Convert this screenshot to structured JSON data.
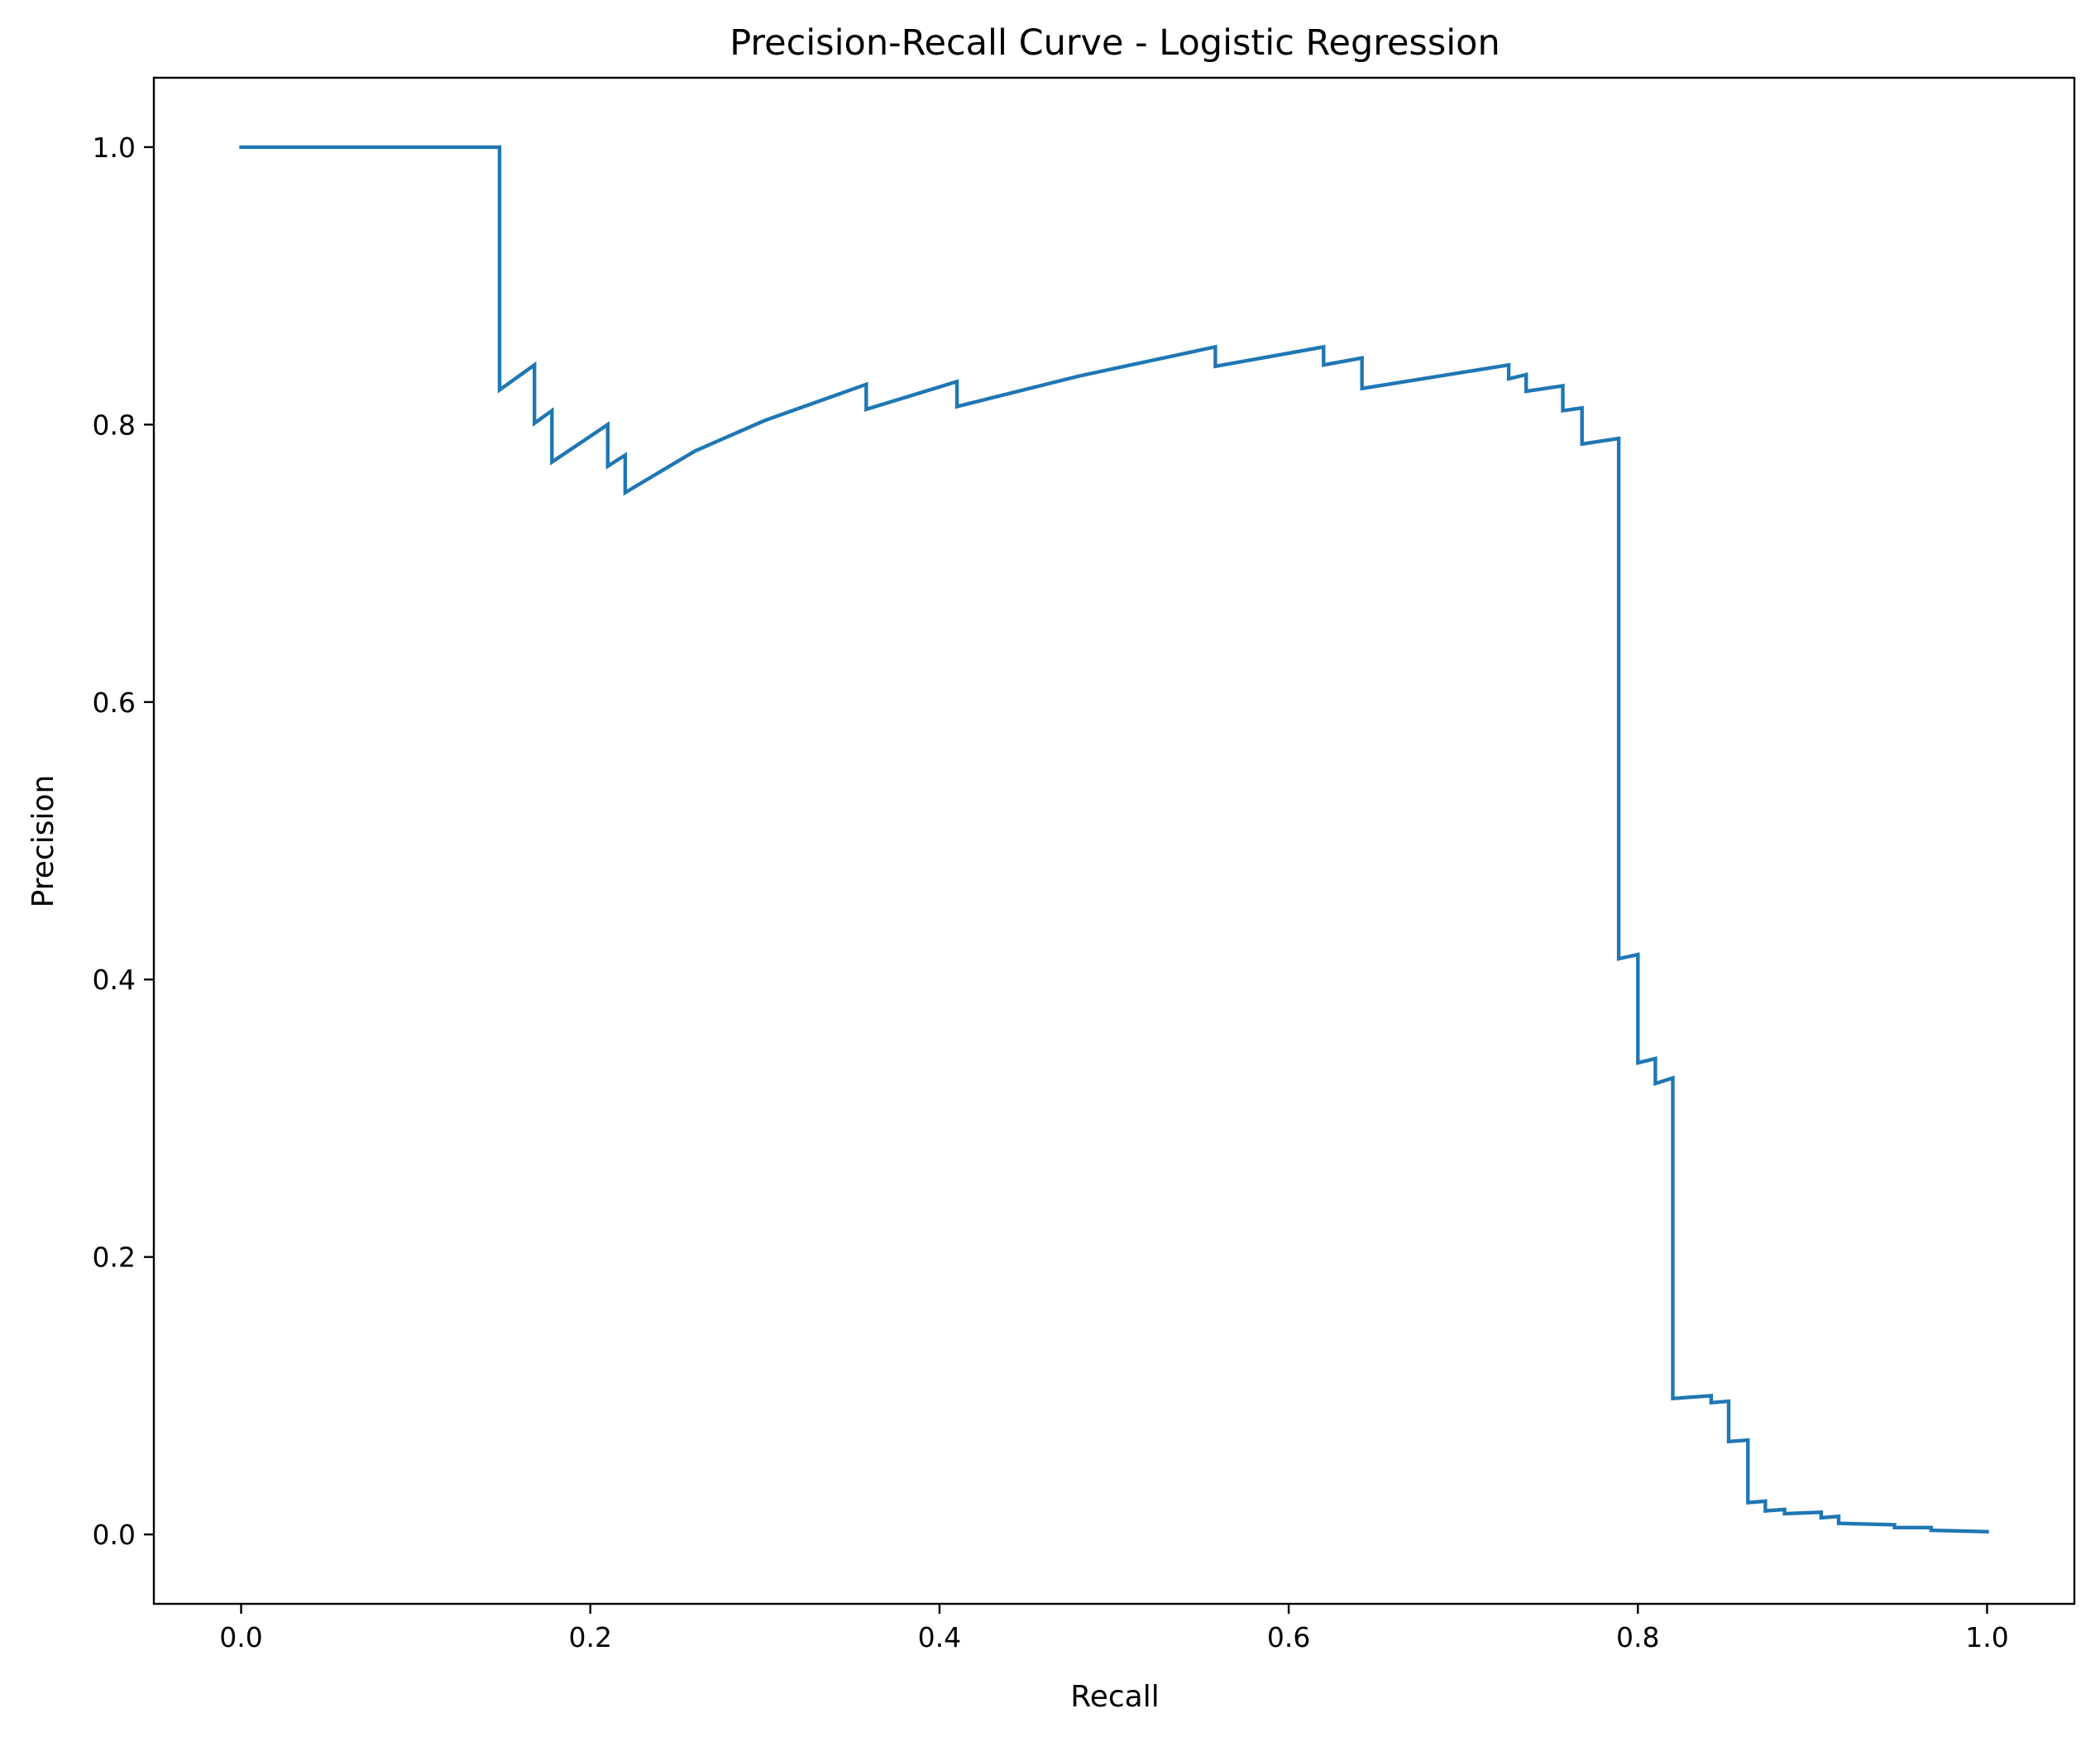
{
  "chart_data": {
    "type": "line",
    "title": "Precision-Recall Curve - Logistic Regression",
    "xlabel": "Recall",
    "ylabel": "Precision",
    "xlim": [
      -0.05,
      1.05
    ],
    "ylim": [
      -0.05,
      1.05
    ],
    "xticks": [
      0.0,
      0.2,
      0.4,
      0.6,
      0.8,
      1.0
    ],
    "yticks": [
      0.0,
      0.2,
      0.4,
      0.6,
      0.8,
      1.0
    ],
    "xtick_labels": [
      "0.0",
      "0.2",
      "0.4",
      "0.6",
      "0.8",
      "1.0"
    ],
    "ytick_labels": [
      "0.0",
      "0.2",
      "0.4",
      "0.6",
      "0.8",
      "1.0"
    ],
    "grid": false,
    "legend": "none",
    "line_color": "#1f77b4",
    "step": "post",
    "series": [
      {
        "x": [
          0.0,
          0.148,
          0.148,
          0.168,
          0.168,
          0.178,
          0.178,
          0.21,
          0.21,
          0.22,
          0.22,
          0.26,
          0.3,
          0.358,
          0.358,
          0.41,
          0.41,
          0.48,
          0.558,
          0.558,
          0.62,
          0.62,
          0.642,
          0.642,
          0.726,
          0.726,
          0.736,
          0.736,
          0.757,
          0.757,
          0.768,
          0.768,
          0.789,
          0.789,
          0.8,
          0.8,
          0.81,
          0.81,
          0.82,
          0.82,
          0.842,
          0.842,
          0.852,
          0.852,
          0.863,
          0.863,
          0.873,
          0.873,
          0.884,
          0.884,
          0.905,
          0.905,
          0.915,
          0.915,
          0.947,
          0.947,
          0.968,
          0.968,
          1.0
        ],
        "y": [
          1.0,
          1.0,
          0.825,
          0.843,
          0.801,
          0.81,
          0.773,
          0.8,
          0.77,
          0.778,
          0.751,
          0.781,
          0.803,
          0.829,
          0.811,
          0.831,
          0.813,
          0.835,
          0.856,
          0.842,
          0.856,
          0.843,
          0.848,
          0.826,
          0.843,
          0.833,
          0.836,
          0.824,
          0.828,
          0.81,
          0.812,
          0.786,
          0.79,
          0.415,
          0.418,
          0.34,
          0.343,
          0.325,
          0.329,
          0.098,
          0.1,
          0.095,
          0.096,
          0.067,
          0.068,
          0.023,
          0.024,
          0.017,
          0.018,
          0.015,
          0.016,
          0.012,
          0.013,
          0.008,
          0.007,
          0.005,
          0.005,
          0.003,
          0.002
        ]
      }
    ]
  }
}
